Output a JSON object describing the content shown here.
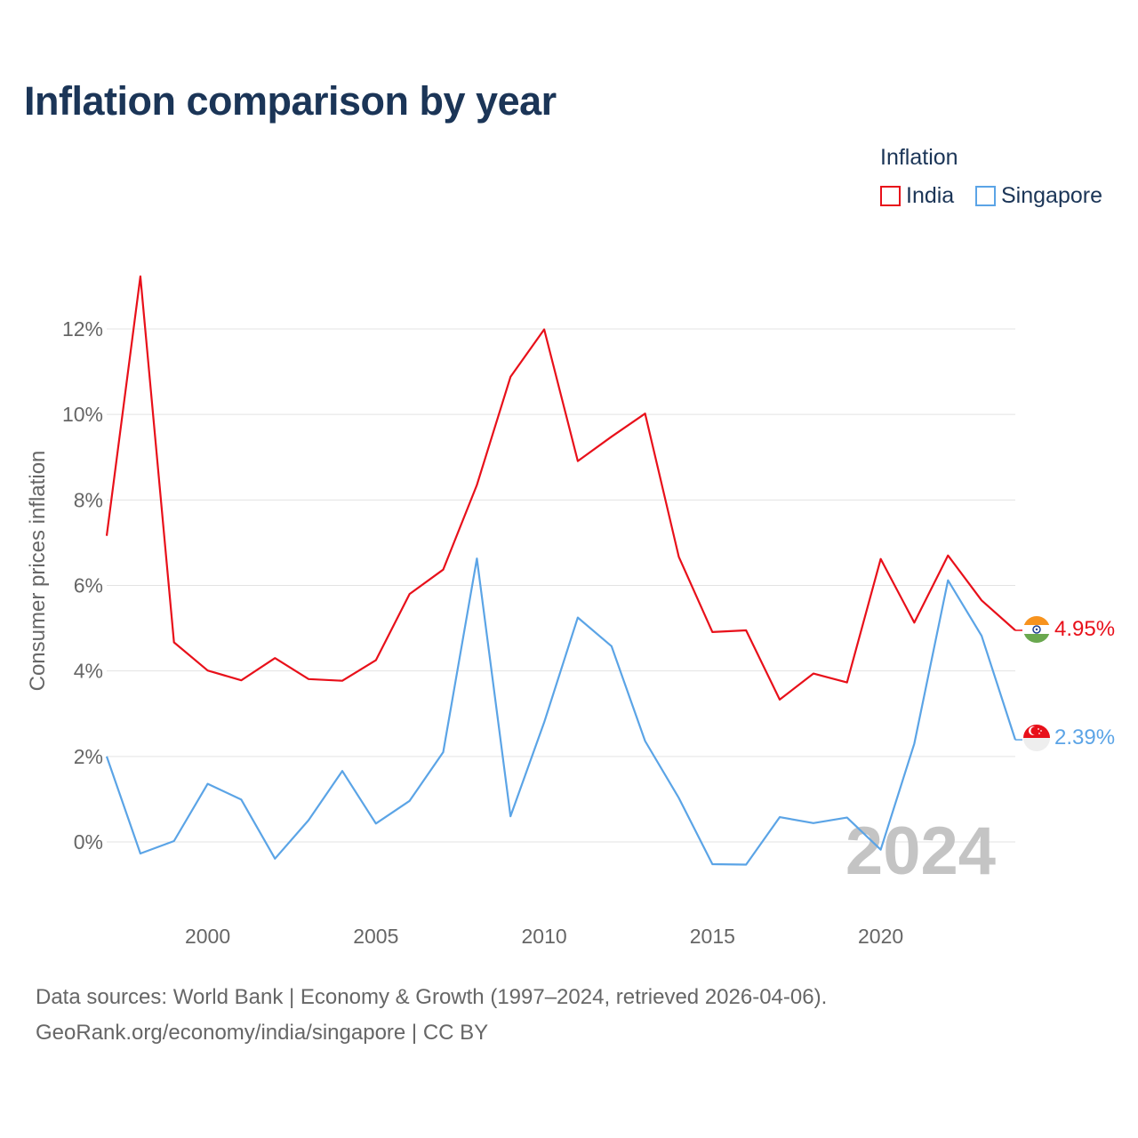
{
  "title": "Inflation comparison by year",
  "legend": {
    "title": "Inflation",
    "items": [
      {
        "label": "India",
        "color": "#e8101a"
      },
      {
        "label": "Singapore",
        "color": "#5ba4e6"
      }
    ]
  },
  "chart_data": {
    "type": "line",
    "title": "Inflation comparison by year",
    "xlabel": "",
    "ylabel": "Consumer prices inflation",
    "xlim": [
      1997,
      2024
    ],
    "ylim": [
      -1.3,
      13.5
    ],
    "x_ticks": [
      2000,
      2005,
      2010,
      2015,
      2020
    ],
    "y_ticks": [
      0,
      2,
      4,
      6,
      8,
      10,
      12
    ],
    "y_tick_labels": [
      "0%",
      "2%",
      "4%",
      "6%",
      "8%",
      "10%",
      "12%"
    ],
    "grid": "horizontal",
    "watermark_year": "2024",
    "x": [
      1997,
      1998,
      1999,
      2000,
      2001,
      2002,
      2003,
      2004,
      2005,
      2006,
      2007,
      2008,
      2009,
      2010,
      2011,
      2012,
      2013,
      2014,
      2015,
      2016,
      2017,
      2018,
      2019,
      2020,
      2021,
      2022,
      2023,
      2024
    ],
    "series": [
      {
        "name": "India",
        "color": "#e8101a",
        "end_label": "4.95%",
        "values": [
          7.16,
          13.23,
          4.67,
          4.01,
          3.78,
          4.3,
          3.81,
          3.77,
          4.25,
          5.8,
          6.37,
          8.35,
          10.88,
          11.99,
          8.91,
          9.48,
          10.02,
          6.67,
          4.91,
          4.95,
          3.33,
          3.94,
          3.73,
          6.62,
          5.13,
          6.7,
          5.65,
          4.95
        ]
      },
      {
        "name": "Singapore",
        "color": "#5ba4e6",
        "end_label": "2.39%",
        "values": [
          2.0,
          -0.27,
          0.02,
          1.36,
          0.99,
          -0.39,
          0.51,
          1.66,
          0.43,
          0.96,
          2.1,
          6.63,
          0.6,
          2.8,
          5.25,
          4.58,
          2.36,
          1.03,
          -0.52,
          -0.53,
          0.58,
          0.44,
          0.57,
          -0.18,
          2.3,
          6.12,
          4.82,
          2.39
        ]
      }
    ]
  },
  "sources": {
    "line1": "Data sources: World Bank | Economy & Growth (1997–2024, retrieved 2026-04-06).",
    "line2": "GeoRank.org/economy/india/singapore | CC BY"
  }
}
